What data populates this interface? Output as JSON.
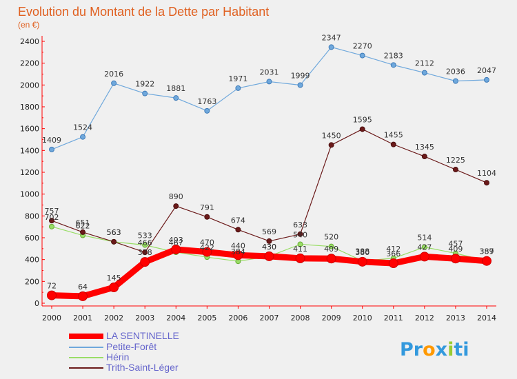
{
  "chart_data": {
    "type": "line",
    "title": "Evolution du Montant de la Dette par Habitant",
    "subtitle": "(en €)",
    "x": [
      "2000",
      "2001",
      "2002",
      "2003",
      "2004",
      "2005",
      "2006",
      "2007",
      "2008",
      "2009",
      "2010",
      "2011",
      "2012",
      "2013",
      "2014"
    ],
    "ylim": [
      0,
      2400
    ],
    "yticks": [
      0,
      200,
      400,
      600,
      800,
      1000,
      1200,
      1400,
      1600,
      1800,
      2000,
      2200,
      2400
    ],
    "grid": false,
    "legend_position": "bottom-left",
    "series": [
      {
        "name": "LA SENTINELLE",
        "color": "#ff0000",
        "values": [
          72,
          64,
          145,
          378,
          493,
          470,
          440,
          430,
          411,
          409,
          380,
          366,
          427,
          409,
          387
        ]
      },
      {
        "name": "Petite-Forêt",
        "color": "#6fa8dc",
        "values": [
          1409,
          1524,
          2016,
          1922,
          1881,
          1763,
          1971,
          2031,
          1999,
          2347,
          2270,
          2183,
          2112,
          2036,
          2047
        ]
      },
      {
        "name": "Hérin",
        "color": "#99dd66",
        "values": [
          702,
          622,
          563,
          533,
          467,
          422,
          384,
          430,
          540,
          520,
          388,
          412,
          514,
          457,
          389
        ]
      },
      {
        "name": "Trith-Saint-Léger",
        "color": "#6b1a1a",
        "values": [
          757,
          651,
          563,
          466,
          890,
          791,
          674,
          569,
          633,
          1450,
          1595,
          1455,
          1345,
          1225,
          1104
        ]
      }
    ]
  },
  "brand": {
    "text_pr": "Pr",
    "text_o": "o",
    "text_x": "x",
    "text_i": "i",
    "text_ti": "ti"
  }
}
